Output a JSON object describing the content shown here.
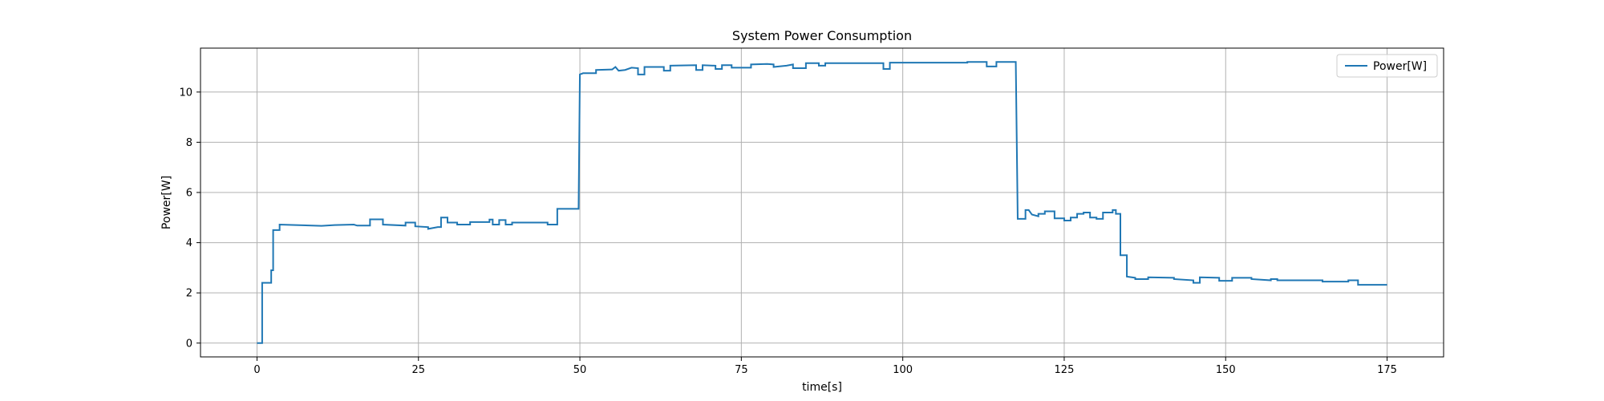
{
  "chart_data": {
    "type": "line",
    "title": "System Power Consumption",
    "xlabel": "time[s]",
    "ylabel": "Power[W]",
    "xlim": [
      -8.75,
      183.75
    ],
    "ylim": [
      -0.55,
      11.75
    ],
    "xticks": [
      0,
      25,
      50,
      75,
      100,
      125,
      150,
      175
    ],
    "yticks": [
      0,
      2,
      4,
      6,
      8,
      10
    ],
    "grid": true,
    "legend_position": "top-right",
    "series": [
      {
        "name": "Power[W]",
        "color": "#1f77b4",
        "step": true,
        "points": [
          [
            0,
            0.0
          ],
          [
            0.8,
            0.0
          ],
          [
            0.8,
            2.4
          ],
          [
            2.2,
            2.4
          ],
          [
            2.2,
            2.9
          ],
          [
            2.5,
            2.9
          ],
          [
            2.5,
            4.5
          ],
          [
            3.5,
            4.5
          ],
          [
            3.5,
            4.72
          ],
          [
            6,
            4.7
          ],
          [
            10,
            4.67
          ],
          [
            12,
            4.7
          ],
          [
            15,
            4.72
          ],
          [
            15.5,
            4.68
          ],
          [
            17.5,
            4.68
          ],
          [
            17.5,
            4.93
          ],
          [
            19.5,
            4.93
          ],
          [
            19.5,
            4.72
          ],
          [
            23,
            4.68
          ],
          [
            23,
            4.8
          ],
          [
            24.5,
            4.8
          ],
          [
            24.5,
            4.65
          ],
          [
            26.5,
            4.62
          ],
          [
            26.5,
            4.55
          ],
          [
            28,
            4.62
          ],
          [
            28.5,
            4.62
          ],
          [
            28.5,
            5.0
          ],
          [
            29.5,
            5.0
          ],
          [
            29.5,
            4.8
          ],
          [
            31,
            4.8
          ],
          [
            31,
            4.72
          ],
          [
            33,
            4.72
          ],
          [
            33,
            4.82
          ],
          [
            36,
            4.82
          ],
          [
            36,
            4.92
          ],
          [
            36.5,
            4.92
          ],
          [
            36.5,
            4.72
          ],
          [
            37.5,
            4.72
          ],
          [
            37.5,
            4.9
          ],
          [
            38.5,
            4.9
          ],
          [
            38.5,
            4.72
          ],
          [
            39.5,
            4.72
          ],
          [
            39.5,
            4.8
          ],
          [
            45,
            4.8
          ],
          [
            45,
            4.72
          ],
          [
            46.5,
            4.72
          ],
          [
            46.5,
            5.35
          ],
          [
            49.8,
            5.35
          ],
          [
            50,
            10.7
          ],
          [
            50.5,
            10.75
          ],
          [
            52.5,
            10.75
          ],
          [
            52.5,
            10.88
          ],
          [
            55,
            10.9
          ],
          [
            55.5,
            11.0
          ],
          [
            56,
            10.85
          ],
          [
            57,
            10.88
          ],
          [
            58,
            10.97
          ],
          [
            59,
            10.95
          ],
          [
            59,
            10.7
          ],
          [
            60,
            10.7
          ],
          [
            60,
            11.0
          ],
          [
            63,
            11.0
          ],
          [
            63,
            10.85
          ],
          [
            64,
            10.85
          ],
          [
            64,
            11.05
          ],
          [
            68,
            11.07
          ],
          [
            68,
            10.88
          ],
          [
            69,
            10.88
          ],
          [
            69,
            11.07
          ],
          [
            71,
            11.05
          ],
          [
            71,
            10.92
          ],
          [
            72,
            10.92
          ],
          [
            72,
            11.07
          ],
          [
            73.5,
            11.07
          ],
          [
            73.5,
            10.97
          ],
          [
            76.5,
            10.97
          ],
          [
            76.5,
            11.1
          ],
          [
            79,
            11.12
          ],
          [
            80,
            11.1
          ],
          [
            80,
            11.0
          ],
          [
            82,
            11.05
          ],
          [
            83,
            11.1
          ],
          [
            83,
            10.95
          ],
          [
            85,
            10.95
          ],
          [
            85,
            11.15
          ],
          [
            87,
            11.15
          ],
          [
            87,
            11.05
          ],
          [
            88,
            11.05
          ],
          [
            88,
            11.15
          ],
          [
            95,
            11.15
          ],
          [
            97,
            11.15
          ],
          [
            97,
            10.92
          ],
          [
            98,
            10.92
          ],
          [
            98,
            11.17
          ],
          [
            110,
            11.17
          ],
          [
            110,
            11.2
          ],
          [
            113,
            11.2
          ],
          [
            113,
            11.02
          ],
          [
            114.5,
            11.02
          ],
          [
            114.5,
            11.2
          ],
          [
            117.5,
            11.2
          ],
          [
            117.8,
            4.95
          ],
          [
            119,
            4.95
          ],
          [
            119,
            5.3
          ],
          [
            119.5,
            5.3
          ],
          [
            120,
            5.12
          ],
          [
            121,
            5.05
          ],
          [
            121,
            5.15
          ],
          [
            122,
            5.15
          ],
          [
            122,
            5.25
          ],
          [
            123.5,
            5.25
          ],
          [
            123.5,
            4.97
          ],
          [
            125,
            4.97
          ],
          [
            125,
            4.88
          ],
          [
            126,
            4.88
          ],
          [
            126,
            5.0
          ],
          [
            127,
            5.0
          ],
          [
            127,
            5.15
          ],
          [
            128,
            5.15
          ],
          [
            128,
            5.2
          ],
          [
            129,
            5.2
          ],
          [
            129,
            5.0
          ],
          [
            130,
            5.0
          ],
          [
            130,
            4.95
          ],
          [
            131,
            4.95
          ],
          [
            131,
            5.2
          ],
          [
            132.5,
            5.2
          ],
          [
            132.5,
            5.3
          ],
          [
            133,
            5.3
          ],
          [
            133,
            5.15
          ],
          [
            133.7,
            5.15
          ],
          [
            133.7,
            3.5
          ],
          [
            134.7,
            3.5
          ],
          [
            134.7,
            2.65
          ],
          [
            136,
            2.6
          ],
          [
            136,
            2.55
          ],
          [
            138,
            2.55
          ],
          [
            138,
            2.62
          ],
          [
            142,
            2.6
          ],
          [
            142,
            2.55
          ],
          [
            145,
            2.5
          ],
          [
            145,
            2.4
          ],
          [
            146,
            2.4
          ],
          [
            146,
            2.62
          ],
          [
            149,
            2.6
          ],
          [
            149,
            2.48
          ],
          [
            151,
            2.48
          ],
          [
            151,
            2.6
          ],
          [
            154,
            2.6
          ],
          [
            154,
            2.55
          ],
          [
            157,
            2.5
          ],
          [
            157,
            2.55
          ],
          [
            158,
            2.55
          ],
          [
            158,
            2.5
          ],
          [
            165,
            2.5
          ],
          [
            165,
            2.45
          ],
          [
            169,
            2.45
          ],
          [
            169,
            2.5
          ],
          [
            170.5,
            2.5
          ],
          [
            170.5,
            2.32
          ],
          [
            175,
            2.32
          ]
        ]
      }
    ]
  }
}
